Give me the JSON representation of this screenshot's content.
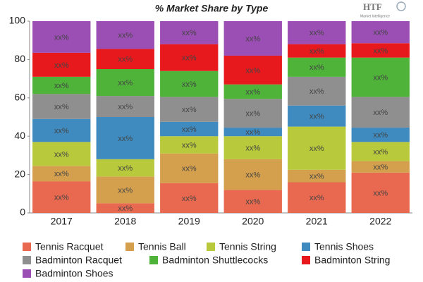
{
  "chart_data": {
    "type": "stacked_bar",
    "title": "% Market Share by Type",
    "logo": "HTF",
    "logo_subtitle": "Market Intelligence",
    "categories": [
      "2017",
      "2018",
      "2019",
      "2020",
      "2021",
      "2022"
    ],
    "ylim": [
      0,
      100
    ],
    "yticks": [
      0,
      20,
      40,
      60,
      80,
      100
    ],
    "grid": false,
    "series": [
      {
        "name": "Tennis Racquet",
        "color": "#e8694f",
        "values": [
          16.5,
          5,
          15.5,
          12,
          16,
          21
        ],
        "value_labels": [
          "xx%",
          "xx%",
          "xx%",
          "xx%",
          "xx%",
          "xx%"
        ]
      },
      {
        "name": "Tennis Ball",
        "color": "#d4a04d",
        "values": [
          8,
          14,
          15.5,
          16,
          6.5,
          6
        ],
        "value_labels": [
          "xx%",
          "xx%",
          "xx%",
          "xx%",
          "xx%",
          "xx%"
        ]
      },
      {
        "name": "Tennis String",
        "color": "#b8c93b",
        "values": [
          12.5,
          9,
          9,
          12,
          22.5,
          10
        ],
        "value_labels": [
          "xx%",
          "xx%",
          "xx%",
          "xx%",
          "xx%",
          "xx%"
        ]
      },
      {
        "name": "Tennis Shoes",
        "color": "#3f8bbf",
        "values": [
          12,
          22,
          7.5,
          4.5,
          11,
          7.5
        ],
        "value_labels": [
          "xx%",
          "xx%",
          "xx%",
          "xx%",
          "xx%",
          "xx%"
        ]
      },
      {
        "name": "Badminton Racquet",
        "color": "#8f8f8f",
        "values": [
          13,
          11,
          13,
          15,
          15,
          16
        ],
        "value_labels": [
          "xx%",
          "xx%",
          "xx%",
          "xx%",
          "xx%",
          "xx%"
        ]
      },
      {
        "name": "Badminton Shuttlecocks",
        "color": "#4fb33a",
        "values": [
          9,
          14,
          13.5,
          7.5,
          10,
          20.5
        ],
        "value_labels": [
          "xx%",
          "xx%",
          "xx%",
          "xx%",
          "xx%",
          "xx%"
        ]
      },
      {
        "name": "Badminton String",
        "color": "#e8191c",
        "values": [
          12.5,
          10.5,
          14,
          15,
          7,
          7.5
        ],
        "value_labels": [
          "xx%",
          "xx%",
          "xx%",
          "xx%",
          "xx%",
          "xx%"
        ]
      },
      {
        "name": "Badminton Shoes",
        "color": "#9b4fb4",
        "values": [
          16.5,
          14.5,
          12,
          18,
          12,
          11.5
        ],
        "value_labels": [
          "xx%",
          "xx%",
          "xx%",
          "xx%",
          "xx%",
          "xx%"
        ]
      }
    ]
  }
}
